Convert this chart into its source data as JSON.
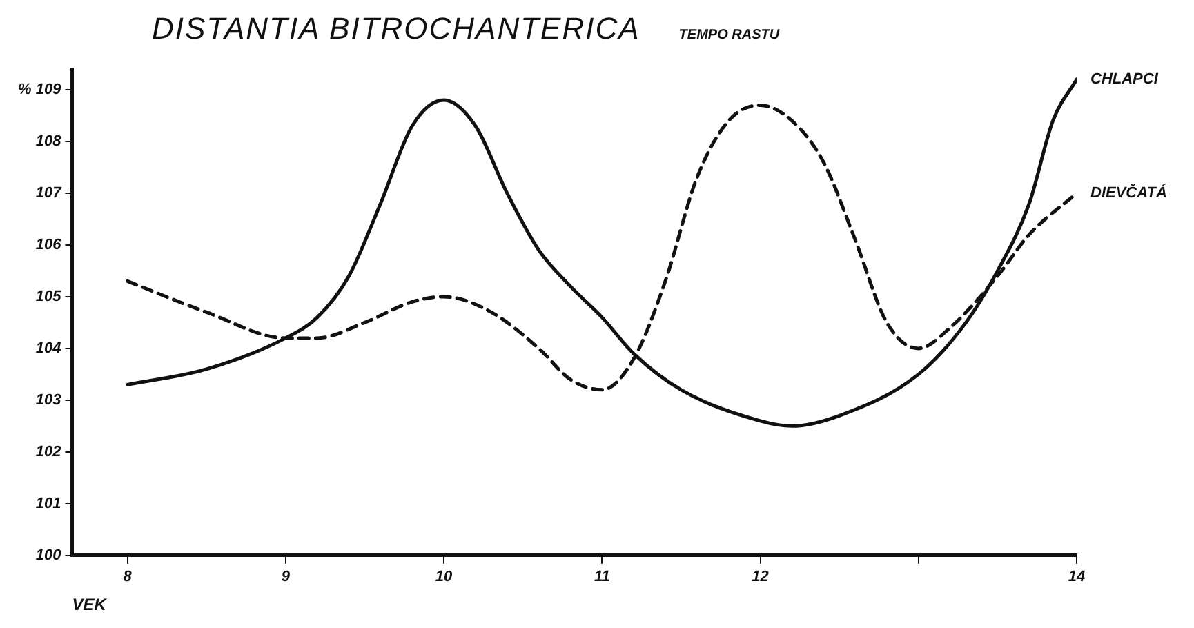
{
  "chart_data": {
    "type": "line",
    "title": "DISTANTIA BITROCHANTERICA",
    "subtitle": "TEMPO RASTU",
    "xlabel": "VEK",
    "xlim": [
      7.65,
      14
    ],
    "xticks": [
      8,
      9,
      10,
      11,
      12,
      {
        "value": 13,
        "label": null
      },
      14
    ],
    "ylim": [
      100,
      109.4
    ],
    "yticks": [
      100,
      101,
      102,
      103,
      104,
      105,
      106,
      107,
      108,
      {
        "value": 109,
        "label": "% 109"
      }
    ],
    "grid": false,
    "legend": false,
    "marker": "none",
    "series": [
      {
        "name": "CHLAPCI",
        "color": "#111111",
        "line_style": "solid",
        "x": [
          8,
          8.5,
          9,
          9.2,
          9.4,
          9.6,
          9.8,
          10,
          10.2,
          10.4,
          10.6,
          10.8,
          11,
          11.2,
          11.5,
          12,
          12.2,
          12.5,
          13,
          13.3,
          13.5,
          13.7,
          13.85,
          14
        ],
        "values": [
          103.3,
          103.6,
          104.2,
          104.6,
          105.4,
          106.8,
          108.3,
          108.8,
          108.3,
          107.0,
          105.9,
          105.2,
          104.6,
          103.9,
          103.2,
          102.6,
          102.5,
          102.7,
          103.5,
          104.5,
          105.5,
          106.8,
          108.4,
          109.2
        ]
      },
      {
        "name": "DIEVČATÁ",
        "color": "#111111",
        "line_style": "dashed",
        "x": [
          8,
          8.5,
          9,
          9.2,
          9.5,
          9.8,
          10,
          10.3,
          10.6,
          10.8,
          11,
          11.2,
          11.4,
          11.6,
          11.8,
          12,
          12.2,
          12.4,
          12.6,
          12.8,
          13,
          13.2,
          13.5,
          13.7,
          14
        ],
        "values": [
          105.3,
          104.7,
          104.2,
          104.2,
          104.5,
          104.9,
          105.0,
          104.7,
          104.0,
          103.4,
          103.2,
          103.8,
          105.3,
          107.3,
          108.4,
          108.7,
          108.4,
          107.6,
          106.1,
          104.5,
          104.0,
          104.4,
          105.4,
          106.2,
          107.0
        ]
      }
    ]
  }
}
